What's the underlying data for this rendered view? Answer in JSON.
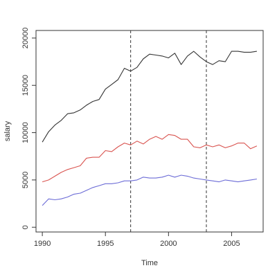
{
  "chart_data": {
    "type": "line",
    "title": "",
    "xlabel": "Time",
    "ylabel": "salary",
    "xlim": [
      1989.5,
      2007.5
    ],
    "ylim": [
      -500,
      20800
    ],
    "x_ticks": [
      1990,
      1995,
      2000,
      2005
    ],
    "y_ticks": [
      0,
      5000,
      10000,
      15000,
      20000
    ],
    "legend": "none",
    "grid": false,
    "x": [
      1990,
      1990.5,
      1991,
      1991.5,
      1992,
      1992.5,
      1993,
      1993.5,
      1994,
      1994.5,
      1995,
      1995.5,
      1996,
      1996.5,
      1997,
      1997.5,
      1998,
      1998.5,
      1999,
      1999.5,
      2000,
      2000.5,
      2001,
      2001.5,
      2002,
      2002.5,
      2003,
      2003.5,
      2004,
      2004.5,
      2005,
      2005.5,
      2006,
      2006.5,
      2007
    ],
    "series": [
      {
        "color": "#333333",
        "values": [
          9000,
          10100,
          10800,
          11300,
          12000,
          12100,
          12400,
          12900,
          13300,
          13500,
          14600,
          15100,
          15600,
          16800,
          16500,
          16900,
          17800,
          18300,
          18200,
          18100,
          17900,
          18400,
          17200,
          18100,
          18600,
          18000,
          17500,
          17200,
          17600,
          17500,
          18600,
          18600,
          18500,
          18500,
          18600
        ]
      },
      {
        "color": "#d9534f",
        "values": [
          4800,
          5000,
          5400,
          5800,
          6100,
          6300,
          6500,
          7300,
          7400,
          7400,
          8100,
          8000,
          8500,
          8900,
          8700,
          9100,
          8800,
          9300,
          9600,
          9300,
          9800,
          9700,
          9300,
          9300,
          8500,
          8400,
          8700,
          8500,
          8700,
          8400,
          8600,
          8900,
          8900,
          8300,
          8600
        ]
      },
      {
        "color": "#6b6bd6",
        "values": [
          2300,
          3000,
          2900,
          3000,
          3200,
          3500,
          3600,
          3900,
          4200,
          4400,
          4600,
          4600,
          4700,
          4900,
          4900,
          5000,
          5300,
          5200,
          5200,
          5300,
          5500,
          5300,
          5500,
          5400,
          5200,
          5100,
          5000,
          4900,
          4800,
          5000,
          4900,
          4800,
          4900,
          5000,
          5100
        ]
      }
    ],
    "vlines": [
      {
        "x": 1997,
        "style": "dashed",
        "color": "#333333"
      },
      {
        "x": 2003,
        "style": "dashed",
        "color": "#333333"
      }
    ]
  }
}
